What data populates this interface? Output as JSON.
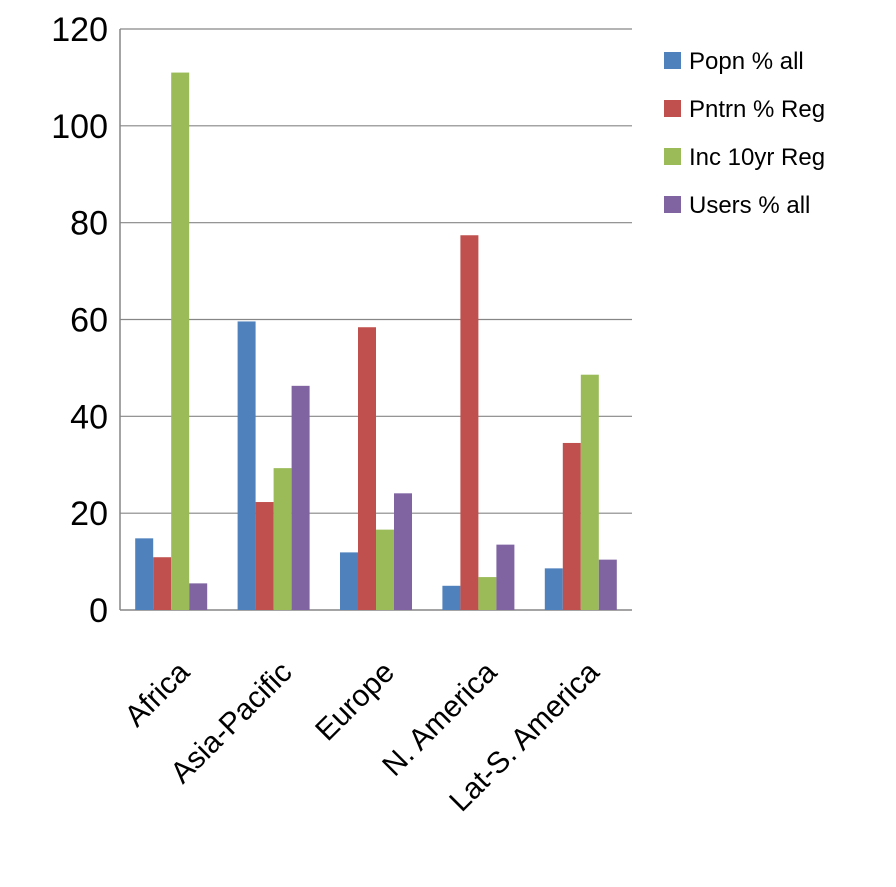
{
  "chart_data": {
    "type": "bar",
    "categories": [
      "Africa",
      "Asia-Pacific",
      "Europe",
      "N. America",
      "Lat-S. America"
    ],
    "series": [
      {
        "name": "Popn % all",
        "color": "#4f81bd",
        "values": [
          14.8,
          59.6,
          11.9,
          5.0,
          8.6
        ]
      },
      {
        "name": "Pntrn % Reg",
        "color": "#c0504d",
        "values": [
          10.9,
          22.3,
          58.4,
          77.4,
          34.5
        ]
      },
      {
        "name": "Inc 10yr Reg",
        "color": "#9bbb59",
        "values": [
          111.0,
          29.3,
          16.6,
          6.8,
          48.6
        ]
      },
      {
        "name": "Users % all",
        "color": "#8064a2",
        "values": [
          5.5,
          46.3,
          24.1,
          13.5,
          10.4
        ]
      }
    ],
    "ylim": [
      0,
      120
    ],
    "yticks": [
      "0",
      "20",
      "40",
      "60",
      "80",
      "100",
      "120"
    ],
    "grid": true,
    "legend_position": "right",
    "title": "",
    "xlabel": "",
    "ylabel": ""
  }
}
